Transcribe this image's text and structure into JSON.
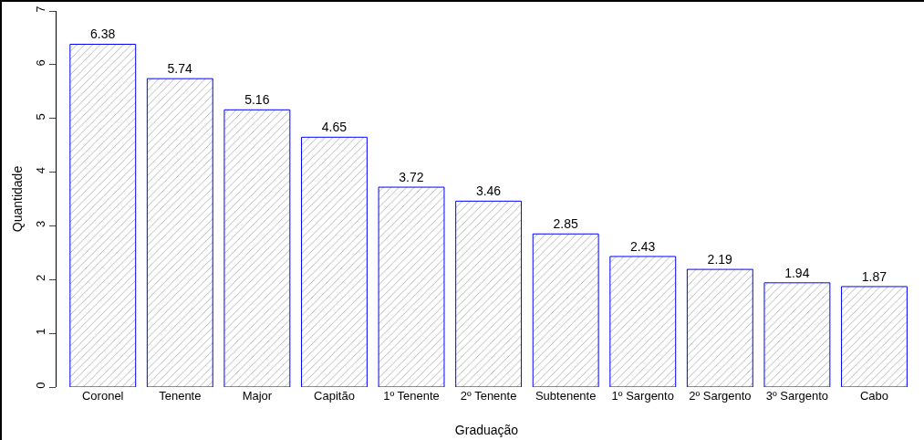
{
  "chart_data": {
    "type": "bar",
    "xlabel": "Graduação",
    "ylabel": "Quantidade",
    "categories": [
      "Coronel",
      "Tenente",
      "Major",
      "Capitão",
      "1º Tenente",
      "2º Tenente",
      "Subtenente",
      "1º Sargento",
      "2º Sargento",
      "3º Sargento",
      "Cabo"
    ],
    "values": [
      6.38,
      5.74,
      5.16,
      4.65,
      3.72,
      3.46,
      2.85,
      2.43,
      2.19,
      1.94,
      1.87
    ],
    "color": "#0000ff",
    "ylim": [
      0,
      7
    ],
    "yticks": [
      0,
      1,
      2,
      3,
      4,
      5,
      6,
      7
    ],
    "grid": false,
    "data_labels": true
  }
}
